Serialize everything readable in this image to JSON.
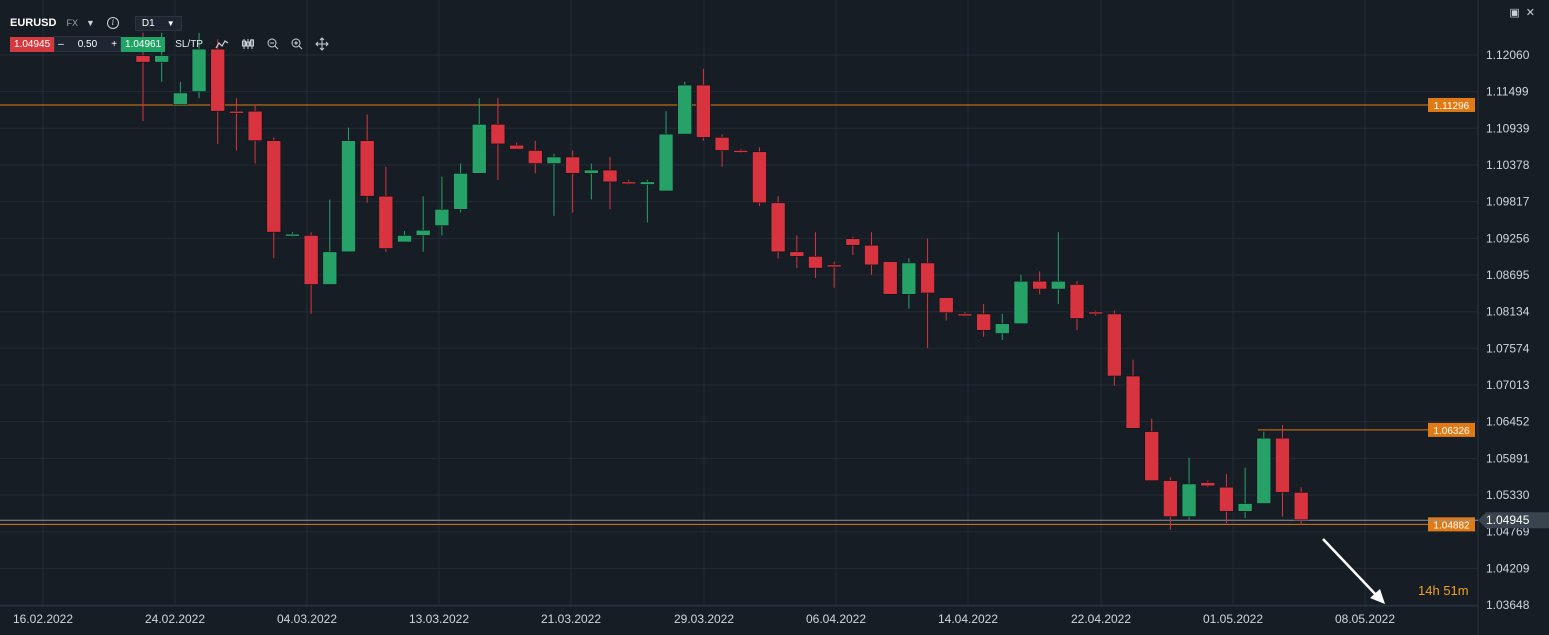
{
  "header": {
    "symbol": "EURUSD",
    "market": "FX",
    "timeframe": "D1",
    "bid": "1.04945",
    "quantity": "0.50",
    "ask": "1.04961",
    "minus": "–",
    "plus": "+",
    "sltp": "SL/TP",
    "icons": [
      "info-icon",
      "line-chart-icon",
      "candles-icon",
      "zoom-out-icon",
      "zoom-in-icon",
      "move-icon",
      "maximize-icon",
      "close-icon"
    ]
  },
  "countdown": {
    "hours": "14",
    "h_unit": "h",
    "minutes": "51",
    "m_unit": "m"
  },
  "colors": {
    "background": "#161d25",
    "grid": "#222b35",
    "bull": "#26a269",
    "bear": "#d8343f",
    "level": "#e07a14",
    "axis_text": "#d0d6dc"
  },
  "chart_data": {
    "type": "candlestick",
    "title": "",
    "ylim": [
      1.0355,
      1.1233
    ],
    "y_ticks": [
      "1.12060",
      "1.11499",
      "1.10939",
      "1.10378",
      "1.09817",
      "1.09256",
      "1.08695",
      "1.08134",
      "1.07574",
      "1.07013",
      "1.06452",
      "1.05891",
      "1.05330",
      "1.04769",
      "1.04209",
      "1.03648"
    ],
    "x_ticks": [
      "16.02.2022",
      "24.02.2022",
      "04.03.2022",
      "13.03.2022",
      "21.03.2022",
      "29.03.2022",
      "06.04.2022",
      "14.04.2022",
      "22.04.2022",
      "01.05.2022",
      "08.05.2022"
    ],
    "levels": [
      {
        "price": 1.11296,
        "label": "1.11296"
      },
      {
        "price": 1.06326,
        "label": "1.06326"
      },
      {
        "price": 1.04882,
        "label": "1.04882"
      }
    ],
    "current_price": {
      "price": 1.04945,
      "label": "1.04945"
    },
    "candles": [
      {
        "o": 1.1205,
        "h": 1.124,
        "l": 1.1105,
        "c": 1.1195
      },
      {
        "o": 1.1195,
        "h": 1.124,
        "l": 1.1165,
        "c": 1.1205
      },
      {
        "o": 1.113,
        "h": 1.1165,
        "l": 1.113,
        "c": 1.1148
      },
      {
        "o": 1.115,
        "h": 1.124,
        "l": 1.114,
        "c": 1.1215
      },
      {
        "o": 1.1215,
        "h": 1.123,
        "l": 1.107,
        "c": 1.112
      },
      {
        "o": 1.112,
        "h": 1.114,
        "l": 1.106,
        "c": 1.1118
      },
      {
        "o": 1.112,
        "h": 1.113,
        "l": 1.104,
        "c": 1.1075
      },
      {
        "o": 1.1075,
        "h": 1.108,
        "l": 1.0895,
        "c": 1.0935
      },
      {
        "o": 1.093,
        "h": 1.0935,
        "l": 1.0928,
        "c": 1.0932
      },
      {
        "o": 1.093,
        "h": 1.0935,
        "l": 1.081,
        "c": 1.0855
      },
      {
        "o": 1.0855,
        "h": 1.0985,
        "l": 1.0855,
        "c": 1.0905
      },
      {
        "o": 1.0905,
        "h": 1.1095,
        "l": 1.0905,
        "c": 1.1075
      },
      {
        "o": 1.1075,
        "h": 1.1115,
        "l": 1.098,
        "c": 1.099
      },
      {
        "o": 1.099,
        "h": 1.1035,
        "l": 1.0905,
        "c": 1.091
      },
      {
        "o": 1.092,
        "h": 1.0937,
        "l": 1.092,
        "c": 1.093
      },
      {
        "o": 1.093,
        "h": 1.099,
        "l": 1.0905,
        "c": 1.0938
      },
      {
        "o": 1.0945,
        "h": 1.102,
        "l": 1.093,
        "c": 1.097
      },
      {
        "o": 1.097,
        "h": 1.104,
        "l": 1.0965,
        "c": 1.1025
      },
      {
        "o": 1.1025,
        "h": 1.114,
        "l": 1.1025,
        "c": 1.11
      },
      {
        "o": 1.11,
        "h": 1.114,
        "l": 1.1015,
        "c": 1.107
      },
      {
        "o": 1.1068,
        "h": 1.1072,
        "l": 1.1062,
        "c": 1.1062
      },
      {
        "o": 1.106,
        "h": 1.1075,
        "l": 1.1025,
        "c": 1.104
      },
      {
        "o": 1.104,
        "h": 1.1055,
        "l": 1.096,
        "c": 1.105
      },
      {
        "o": 1.105,
        "h": 1.106,
        "l": 1.0965,
        "c": 1.1025
      },
      {
        "o": 1.1025,
        "h": 1.104,
        "l": 1.0985,
        "c": 1.103
      },
      {
        "o": 1.103,
        "h": 1.105,
        "l": 1.097,
        "c": 1.1012
      },
      {
        "o": 1.1012,
        "h": 1.1015,
        "l": 1.1008,
        "c": 1.101
      },
      {
        "o": 1.1008,
        "h": 1.1015,
        "l": 1.095,
        "c": 1.1012
      },
      {
        "o": 1.0998,
        "h": 1.112,
        "l": 1.0998,
        "c": 1.1085
      },
      {
        "o": 1.1085,
        "h": 1.1165,
        "l": 1.1085,
        "c": 1.116
      },
      {
        "o": 1.116,
        "h": 1.1185,
        "l": 1.1075,
        "c": 1.108
      },
      {
        "o": 1.108,
        "h": 1.1085,
        "l": 1.1035,
        "c": 1.106
      },
      {
        "o": 1.106,
        "h": 1.1062,
        "l": 1.1056,
        "c": 1.1058
      },
      {
        "o": 1.1058,
        "h": 1.1065,
        "l": 1.0975,
        "c": 1.098
      },
      {
        "o": 1.098,
        "h": 1.099,
        "l": 1.0895,
        "c": 1.0905
      },
      {
        "o": 1.0905,
        "h": 1.093,
        "l": 1.088,
        "c": 1.0898
      },
      {
        "o": 1.0898,
        "h": 1.0935,
        "l": 1.0865,
        "c": 1.088
      },
      {
        "o": 1.0885,
        "h": 1.089,
        "l": 1.085,
        "c": 1.0882
      },
      {
        "o": 1.0925,
        "h": 1.0928,
        "l": 1.09,
        "c": 1.0915
      },
      {
        "o": 1.0915,
        "h": 1.0935,
        "l": 1.087,
        "c": 1.0885
      },
      {
        "o": 1.089,
        "h": 1.089,
        "l": 1.084,
        "c": 1.084
      },
      {
        "o": 1.084,
        "h": 1.0895,
        "l": 1.0818,
        "c": 1.0888
      },
      {
        "o": 1.0888,
        "h": 1.0925,
        "l": 1.0758,
        "c": 1.0842
      },
      {
        "o": 1.0835,
        "h": 1.0835,
        "l": 1.08,
        "c": 1.0812
      },
      {
        "o": 1.081,
        "h": 1.0813,
        "l": 1.0806,
        "c": 1.0808
      },
      {
        "o": 1.081,
        "h": 1.0825,
        "l": 1.0775,
        "c": 1.0785
      },
      {
        "o": 1.078,
        "h": 1.081,
        "l": 1.077,
        "c": 1.0795
      },
      {
        "o": 1.0795,
        "h": 1.087,
        "l": 1.0795,
        "c": 1.086
      },
      {
        "o": 1.086,
        "h": 1.0875,
        "l": 1.084,
        "c": 1.0848
      },
      {
        "o": 1.0848,
        "h": 1.0935,
        "l": 1.0825,
        "c": 1.086
      },
      {
        "o": 1.0855,
        "h": 1.086,
        "l": 1.0785,
        "c": 1.0803
      },
      {
        "o": 1.0813,
        "h": 1.0815,
        "l": 1.0807,
        "c": 1.081
      },
      {
        "o": 1.081,
        "h": 1.0815,
        "l": 1.07,
        "c": 1.0715
      },
      {
        "o": 1.0715,
        "h": 1.074,
        "l": 1.0635,
        "c": 1.0635
      },
      {
        "o": 1.063,
        "h": 1.065,
        "l": 1.0555,
        "c": 1.0555
      },
      {
        "o": 1.0555,
        "h": 1.056,
        "l": 1.048,
        "c": 1.05
      },
      {
        "o": 1.05,
        "h": 1.059,
        "l": 1.0495,
        "c": 1.055
      },
      {
        "o": 1.0552,
        "h": 1.0555,
        "l": 1.0545,
        "c": 1.0547
      },
      {
        "o": 1.0545,
        "h": 1.0565,
        "l": 1.049,
        "c": 1.0508
      },
      {
        "o": 1.0508,
        "h": 1.0575,
        "l": 1.0498,
        "c": 1.052
      },
      {
        "o": 1.052,
        "h": 1.063,
        "l": 1.052,
        "c": 1.062
      },
      {
        "o": 1.062,
        "h": 1.064,
        "l": 1.05,
        "c": 1.0537
      },
      {
        "o": 1.0537,
        "h": 1.0545,
        "l": 1.0487,
        "c": 1.0495
      }
    ]
  }
}
